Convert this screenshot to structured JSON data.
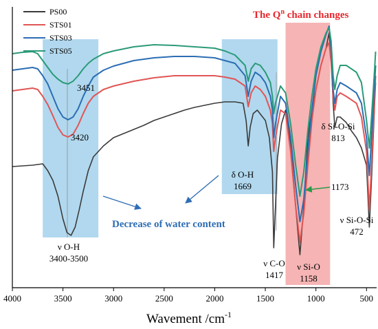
{
  "chart_data": {
    "type": "line",
    "title": "",
    "xlabel": "Wavement /cm",
    "xlabel_superscript": "-1",
    "ylabel": "",
    "x_reversed": true,
    "xlim": [
      4000,
      400
    ],
    "xticks": [
      4000,
      3500,
      3000,
      2500,
      2000,
      1500,
      1000,
      500
    ],
    "grid": false,
    "legend_position": "top-left",
    "series": [
      {
        "name": "PS00",
        "color": "#3a3a3a",
        "points": [
          [
            4000,
            242
          ],
          [
            3900,
            241
          ],
          [
            3800,
            240
          ],
          [
            3700,
            238
          ],
          [
            3650,
            248
          ],
          [
            3600,
            262
          ],
          [
            3550,
            285
          ],
          [
            3500,
            318
          ],
          [
            3460,
            338
          ],
          [
            3420,
            342
          ],
          [
            3380,
            330
          ],
          [
            3340,
            305
          ],
          [
            3300,
            278
          ],
          [
            3250,
            248
          ],
          [
            3200,
            228
          ],
          [
            3100,
            212
          ],
          [
            3000,
            200
          ],
          [
            2900,
            194
          ],
          [
            2800,
            188
          ],
          [
            2700,
            182
          ],
          [
            2600,
            175
          ],
          [
            2500,
            170
          ],
          [
            2400,
            165
          ],
          [
            2300,
            160
          ],
          [
            2200,
            156
          ],
          [
            2100,
            153
          ],
          [
            2000,
            150
          ],
          [
            1900,
            148
          ],
          [
            1800,
            148
          ],
          [
            1720,
            150
          ],
          [
            1690,
            175
          ],
          [
            1669,
            212
          ],
          [
            1650,
            185
          ],
          [
            1620,
            165
          ],
          [
            1580,
            160
          ],
          [
            1500,
            175
          ],
          [
            1460,
            200
          ],
          [
            1430,
            250
          ],
          [
            1417,
            360
          ],
          [
            1400,
            300
          ],
          [
            1380,
            230
          ],
          [
            1340,
            180
          ],
          [
            1300,
            160
          ],
          [
            1250,
            210
          ],
          [
            1200,
            300
          ],
          [
            1158,
            370
          ],
          [
            1120,
            300
          ],
          [
            1080,
            200
          ],
          [
            1040,
            160
          ],
          [
            1000,
            130
          ],
          [
            950,
            95
          ],
          [
            900,
            70
          ],
          [
            870,
            48
          ],
          [
            850,
            80
          ],
          [
            830,
            150
          ],
          [
            813,
            185
          ],
          [
            790,
            170
          ],
          [
            760,
            170
          ],
          [
            700,
            178
          ],
          [
            650,
            190
          ],
          [
            600,
            200
          ],
          [
            550,
            215
          ],
          [
            500,
            240
          ],
          [
            472,
            330
          ],
          [
            450,
            260
          ],
          [
            420,
            150
          ],
          [
            410,
            120
          ]
        ]
      },
      {
        "name": "STS01",
        "color": "#e05555",
        "points": [
          [
            4000,
            132
          ],
          [
            3900,
            130
          ],
          [
            3800,
            128
          ],
          [
            3750,
            130
          ],
          [
            3700,
            140
          ],
          [
            3650,
            152
          ],
          [
            3600,
            168
          ],
          [
            3550,
            185
          ],
          [
            3500,
            196
          ],
          [
            3450,
            199
          ],
          [
            3400,
            195
          ],
          [
            3350,
            182
          ],
          [
            3300,
            165
          ],
          [
            3250,
            150
          ],
          [
            3200,
            140
          ],
          [
            3100,
            130
          ],
          [
            3000,
            125
          ],
          [
            2800,
            118
          ],
          [
            2600,
            113
          ],
          [
            2400,
            110
          ],
          [
            2200,
            110
          ],
          [
            2000,
            110
          ],
          [
            1900,
            112
          ],
          [
            1800,
            115
          ],
          [
            1700,
            125
          ],
          [
            1669,
            155
          ],
          [
            1640,
            135
          ],
          [
            1600,
            125
          ],
          [
            1550,
            130
          ],
          [
            1500,
            140
          ],
          [
            1450,
            160
          ],
          [
            1430,
            180
          ],
          [
            1417,
            220
          ],
          [
            1400,
            200
          ],
          [
            1350,
            160
          ],
          [
            1300,
            165
          ],
          [
            1250,
            220
          ],
          [
            1200,
            300
          ],
          [
            1158,
            352
          ],
          [
            1120,
            310
          ],
          [
            1080,
            240
          ],
          [
            1040,
            175
          ],
          [
            1000,
            130
          ],
          [
            950,
            95
          ],
          [
            900,
            70
          ],
          [
            870,
            62
          ],
          [
            850,
            90
          ],
          [
            830,
            140
          ],
          [
            813,
            160
          ],
          [
            790,
            140
          ],
          [
            760,
            135
          ],
          [
            700,
            140
          ],
          [
            600,
            150
          ],
          [
            550,
            170
          ],
          [
            500,
            220
          ],
          [
            472,
            305
          ],
          [
            450,
            240
          ],
          [
            420,
            140
          ],
          [
            410,
            110
          ]
        ]
      },
      {
        "name": "STS03",
        "color": "#2b6db3",
        "points": [
          [
            4000,
            102
          ],
          [
            3900,
            100
          ],
          [
            3800,
            98
          ],
          [
            3750,
            100
          ],
          [
            3700,
            110
          ],
          [
            3650,
            122
          ],
          [
            3600,
            140
          ],
          [
            3550,
            158
          ],
          [
            3500,
            170
          ],
          [
            3450,
            174
          ],
          [
            3400,
            170
          ],
          [
            3350,
            158
          ],
          [
            3300,
            140
          ],
          [
            3250,
            125
          ],
          [
            3200,
            112
          ],
          [
            3100,
            102
          ],
          [
            3000,
            96
          ],
          [
            2800,
            88
          ],
          [
            2600,
            84
          ],
          [
            2400,
            82
          ],
          [
            2200,
            82
          ],
          [
            2000,
            84
          ],
          [
            1900,
            88
          ],
          [
            1800,
            92
          ],
          [
            1700,
            110
          ],
          [
            1669,
            140
          ],
          [
            1640,
            118
          ],
          [
            1600,
            105
          ],
          [
            1550,
            110
          ],
          [
            1500,
            120
          ],
          [
            1450,
            140
          ],
          [
            1430,
            160
          ],
          [
            1417,
            200
          ],
          [
            1400,
            180
          ],
          [
            1350,
            140
          ],
          [
            1300,
            150
          ],
          [
            1250,
            200
          ],
          [
            1200,
            270
          ],
          [
            1158,
            322
          ],
          [
            1120,
            290
          ],
          [
            1080,
            220
          ],
          [
            1040,
            160
          ],
          [
            1000,
            110
          ],
          [
            950,
            75
          ],
          [
            900,
            50
          ],
          [
            870,
            38
          ],
          [
            850,
            70
          ],
          [
            830,
            130
          ],
          [
            813,
            150
          ],
          [
            790,
            130
          ],
          [
            760,
            120
          ],
          [
            700,
            125
          ],
          [
            600,
            135
          ],
          [
            550,
            150
          ],
          [
            500,
            200
          ],
          [
            472,
            255
          ],
          [
            450,
            200
          ],
          [
            420,
            120
          ],
          [
            410,
            95
          ]
        ]
      },
      {
        "name": "STS05",
        "color": "#2a9a78",
        "points": [
          [
            4000,
            78
          ],
          [
            3900,
            76
          ],
          [
            3800,
            75
          ],
          [
            3750,
            78
          ],
          [
            3700,
            88
          ],
          [
            3650,
            98
          ],
          [
            3600,
            108
          ],
          [
            3550,
            115
          ],
          [
            3500,
            120
          ],
          [
            3450,
            122
          ],
          [
            3400,
            118
          ],
          [
            3350,
            110
          ],
          [
            3300,
            100
          ],
          [
            3250,
            92
          ],
          [
            3200,
            86
          ],
          [
            3100,
            78
          ],
          [
            3000,
            74
          ],
          [
            2800,
            68
          ],
          [
            2600,
            65
          ],
          [
            2400,
            66
          ],
          [
            2200,
            68
          ],
          [
            2000,
            70
          ],
          [
            1900,
            74
          ],
          [
            1800,
            80
          ],
          [
            1700,
            95
          ],
          [
            1669,
            118
          ],
          [
            1640,
            100
          ],
          [
            1600,
            92
          ],
          [
            1550,
            95
          ],
          [
            1500,
            105
          ],
          [
            1450,
            120
          ],
          [
            1430,
            140
          ],
          [
            1417,
            165
          ],
          [
            1400,
            150
          ],
          [
            1350,
            125
          ],
          [
            1300,
            135
          ],
          [
            1250,
            180
          ],
          [
            1200,
            240
          ],
          [
            1158,
            285
          ],
          [
            1120,
            250
          ],
          [
            1080,
            190
          ],
          [
            1040,
            140
          ],
          [
            1000,
            100
          ],
          [
            950,
            68
          ],
          [
            900,
            48
          ],
          [
            870,
            40
          ],
          [
            850,
            60
          ],
          [
            830,
            110
          ],
          [
            813,
            130
          ],
          [
            790,
            110
          ],
          [
            760,
            95
          ],
          [
            700,
            95
          ],
          [
            600,
            105
          ],
          [
            550,
            120
          ],
          [
            500,
            175
          ],
          [
            472,
            215
          ],
          [
            450,
            170
          ],
          [
            420,
            100
          ],
          [
            410,
            75
          ]
        ]
      }
    ],
    "highlight_regions": [
      {
        "x_from": 3700,
        "x_to": 3150,
        "color": "#a9d4ec"
      },
      {
        "x_from": 1930,
        "x_to": 1380,
        "color": "#a9d4ec"
      },
      {
        "x_from": 1300,
        "x_to": 860,
        "color": "#f4a7a7"
      }
    ],
    "annotations": {
      "qn_title": "The Q",
      "qn_sup": "n",
      "qn_rest": " chain changes",
      "label_3451": "3451",
      "label_3420": "3420",
      "voh_line1": "ν O-H",
      "voh_line2": "3400-3500",
      "decrease": "Decrease of water content",
      "doh_line1": "δ O-H",
      "doh_line2": "1669",
      "vco_line1": "ν C-O",
      "vco_line2": "1417",
      "vsio_line1": "ν Si-O",
      "vsio_line2": "1158",
      "label_1173": "1173",
      "dsiosi_line1": "δ Si-O-Si",
      "dsiosi_line2": "813",
      "vsiosi_line1": "ν Si-O-Si",
      "vsiosi_line2": "472"
    }
  }
}
